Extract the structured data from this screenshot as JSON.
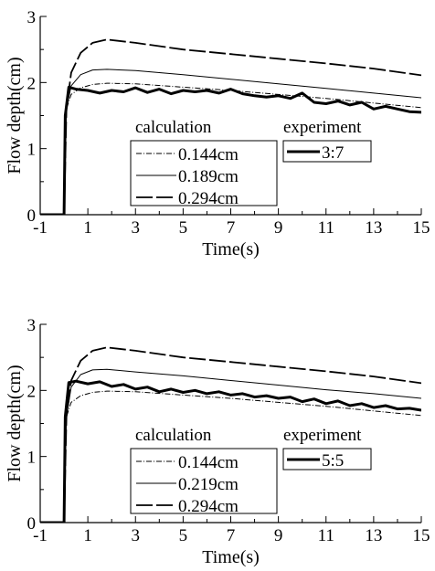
{
  "chart_data": [
    {
      "type": "line",
      "title": "",
      "xlabel": "Time(s)",
      "ylabel": "Flow depth(cm)",
      "xlim": [
        -1,
        15
      ],
      "ylim": [
        0,
        3
      ],
      "xticks": [
        -1,
        1,
        3,
        5,
        7,
        9,
        11,
        13,
        15
      ],
      "yticks": [
        0,
        1,
        2,
        3
      ],
      "grid": false,
      "legend": {
        "placement": "center",
        "calc_header": "calculation",
        "exp_header": "experiment"
      },
      "series": [
        {
          "name": "0.144cm",
          "group": "calculation",
          "style": "dashdot-fine",
          "x": [
            -1,
            0,
            0.1,
            0.3,
            0.7,
            1.2,
            1.8,
            3,
            5,
            7,
            9,
            11,
            13,
            15
          ],
          "y": [
            0,
            0,
            1.6,
            1.82,
            1.92,
            1.97,
            1.99,
            1.98,
            1.93,
            1.88,
            1.82,
            1.76,
            1.69,
            1.62
          ]
        },
        {
          "name": "0.189cm",
          "group": "calculation",
          "style": "solid-thin",
          "x": [
            -1,
            0,
            0.1,
            0.3,
            0.7,
            1.2,
            1.8,
            3,
            5,
            7,
            9,
            11,
            13,
            15
          ],
          "y": [
            0,
            0,
            1.6,
            1.95,
            2.12,
            2.19,
            2.2,
            2.18,
            2.12,
            2.05,
            1.98,
            1.91,
            1.84,
            1.77
          ]
        },
        {
          "name": "0.294cm",
          "group": "calculation",
          "style": "dashed",
          "x": [
            -1,
            0,
            0.1,
            0.3,
            0.7,
            1.2,
            1.8,
            3,
            5,
            7,
            9,
            11,
            13,
            15
          ],
          "y": [
            0,
            0,
            1.6,
            2.15,
            2.45,
            2.6,
            2.65,
            2.6,
            2.5,
            2.43,
            2.36,
            2.29,
            2.21,
            2.11
          ]
        },
        {
          "name": "3:7",
          "group": "experiment",
          "style": "solid-thick",
          "x": [
            -1,
            0,
            0.05,
            0.2,
            0.5,
            1,
            1.5,
            2,
            2.5,
            3,
            3.5,
            4,
            4.5,
            5,
            5.5,
            6,
            6.5,
            7,
            7.5,
            8,
            8.5,
            9,
            9.5,
            10,
            10.5,
            11,
            11.5,
            12,
            12.5,
            13,
            13.5,
            14,
            14.5,
            15
          ],
          "y": [
            0,
            0,
            1.5,
            1.93,
            1.9,
            1.88,
            1.84,
            1.88,
            1.86,
            1.92,
            1.85,
            1.9,
            1.83,
            1.88,
            1.86,
            1.88,
            1.84,
            1.9,
            1.83,
            1.8,
            1.78,
            1.8,
            1.76,
            1.84,
            1.7,
            1.68,
            1.72,
            1.66,
            1.7,
            1.6,
            1.64,
            1.6,
            1.56,
            1.55
          ]
        }
      ]
    },
    {
      "type": "line",
      "title": "",
      "xlabel": "Time(s)",
      "ylabel": "Flow depth(cm)",
      "xlim": [
        -1,
        15
      ],
      "ylim": [
        0,
        3
      ],
      "xticks": [
        -1,
        1,
        3,
        5,
        7,
        9,
        11,
        13,
        15
      ],
      "yticks": [
        0,
        1,
        2,
        3
      ],
      "grid": false,
      "legend": {
        "placement": "center",
        "calc_header": "calculation",
        "exp_header": "experiment"
      },
      "series": [
        {
          "name": "0.144cm",
          "group": "calculation",
          "style": "dashdot-fine",
          "x": [
            -1,
            0,
            0.1,
            0.3,
            0.7,
            1.2,
            1.8,
            3,
            5,
            7,
            9,
            11,
            13,
            15
          ],
          "y": [
            0,
            0,
            1.6,
            1.82,
            1.92,
            1.97,
            1.99,
            1.98,
            1.93,
            1.88,
            1.82,
            1.76,
            1.69,
            1.62
          ]
        },
        {
          "name": "0.219cm",
          "group": "calculation",
          "style": "solid-thin",
          "x": [
            -1,
            0,
            0.1,
            0.3,
            0.7,
            1.2,
            1.8,
            3,
            5,
            7,
            9,
            11,
            13,
            15
          ],
          "y": [
            0,
            0,
            1.6,
            2.05,
            2.24,
            2.31,
            2.32,
            2.28,
            2.22,
            2.15,
            2.08,
            2.01,
            1.95,
            1.88
          ]
        },
        {
          "name": "0.294cm",
          "group": "calculation",
          "style": "dashed",
          "x": [
            -1,
            0,
            0.1,
            0.3,
            0.7,
            1.2,
            1.8,
            3,
            5,
            7,
            9,
            11,
            13,
            15
          ],
          "y": [
            0,
            0,
            1.6,
            2.15,
            2.45,
            2.6,
            2.65,
            2.6,
            2.5,
            2.43,
            2.36,
            2.29,
            2.21,
            2.11
          ]
        },
        {
          "name": "5:5",
          "group": "experiment",
          "style": "solid-thick",
          "x": [
            -1,
            0,
            0.05,
            0.2,
            0.5,
            1,
            1.5,
            2,
            2.5,
            3,
            3.5,
            4,
            4.5,
            5,
            5.5,
            6,
            6.5,
            7,
            7.5,
            8,
            8.5,
            9,
            9.5,
            10,
            10.5,
            11,
            11.5,
            12,
            12.5,
            13,
            13.5,
            14,
            14.5,
            15
          ],
          "y": [
            0,
            0,
            1.6,
            2.12,
            2.14,
            2.1,
            2.13,
            2.06,
            2.09,
            2.02,
            2.05,
            1.98,
            2.02,
            1.97,
            2.0,
            1.95,
            1.98,
            1.93,
            1.95,
            1.9,
            1.92,
            1.88,
            1.9,
            1.83,
            1.87,
            1.8,
            1.84,
            1.77,
            1.8,
            1.74,
            1.77,
            1.72,
            1.73,
            1.7
          ]
        }
      ]
    }
  ]
}
